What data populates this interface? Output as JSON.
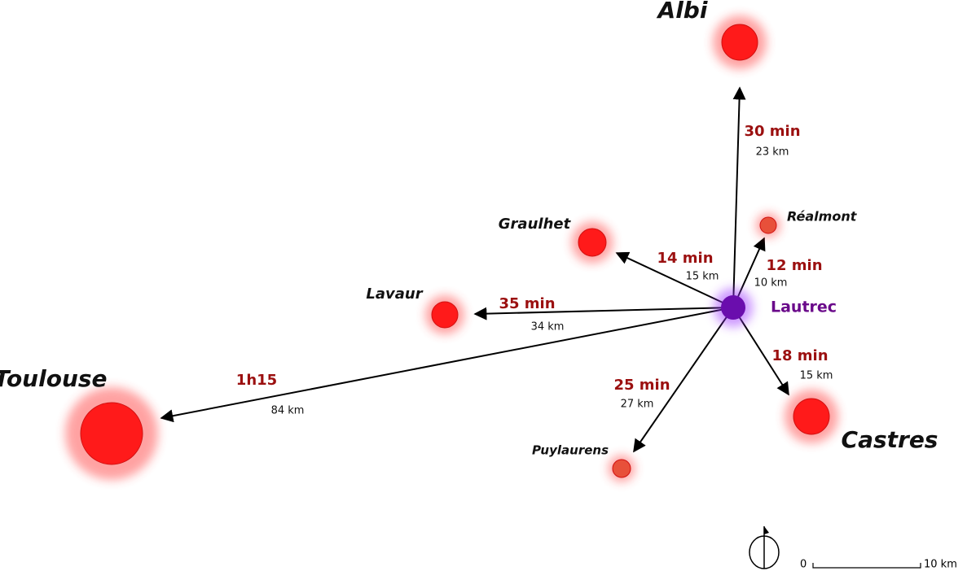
{
  "center": {
    "label": "Lautrec"
  },
  "towns": [
    {
      "label": "Albi",
      "time": "30 min",
      "distance": "23 km"
    },
    {
      "label": "Réalmont",
      "time": "12 min",
      "distance": "10 km"
    },
    {
      "label": "Graulhet",
      "time": "14 min",
      "distance": "15 km"
    },
    {
      "label": "Lavaur",
      "time": "35 min",
      "distance": "34 km"
    },
    {
      "label": "Toulouse",
      "time": "1h15",
      "distance": "84 km"
    },
    {
      "label": "Puylaurens",
      "time": "25 min",
      "distance": "27 km"
    },
    {
      "label": "Castres",
      "time": "18 min",
      "distance": "15 km"
    }
  ],
  "scale": {
    "start": "0",
    "end": "10 km"
  }
}
